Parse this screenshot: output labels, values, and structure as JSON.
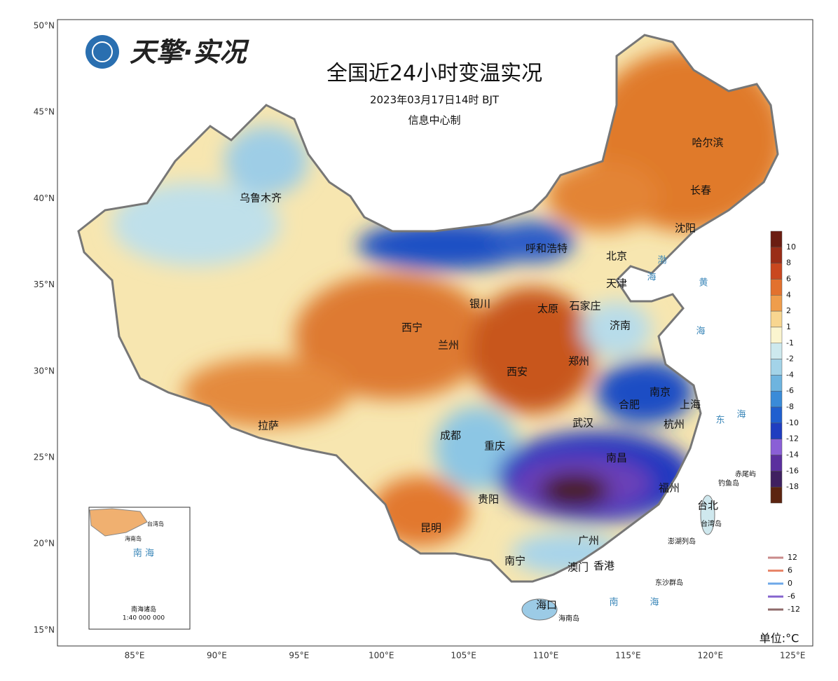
{
  "logo": "天擎·实况",
  "title": "全国近24小时变温实况",
  "time": "2023年03月17日14时  BJT",
  "producer": "信息中心制",
  "lat_labels": [
    "50°N",
    "45°N",
    "40°N",
    "35°N",
    "30°N",
    "25°N",
    "20°N",
    "15°N"
  ],
  "lon_labels": [
    "85°E",
    "90°E",
    "95°E",
    "100°E",
    "105°E",
    "110°E",
    "115°E",
    "120°E",
    "125°E"
  ],
  "cities": [
    "乌鲁木齐",
    "哈尔滨",
    "长春",
    "沈阳",
    "呼和浩特",
    "北京",
    "天津",
    "银川",
    "太原",
    "石家庄",
    "西宁",
    "兰州",
    "济南",
    "郑州",
    "西安",
    "南京",
    "合肥",
    "上海",
    "武汉",
    "杭州",
    "成都",
    "重庆",
    "拉萨",
    "南昌",
    "福州",
    "贵阳",
    "台北",
    "昆明",
    "广州",
    "南宁",
    "澳门",
    "香港",
    "海口"
  ],
  "seas": [
    "渤",
    "海",
    "黄",
    "海",
    "东",
    "海",
    "南",
    "海"
  ],
  "islands": [
    "赤尾屿",
    "钓鱼岛",
    "台湾岛",
    "澎湖列岛",
    "东沙群岛",
    "海南岛"
  ],
  "inset": {
    "sea": "南 海",
    "islands": "南海诸岛",
    "scale": "1:40 000 000",
    "labels": [
      "台湾岛",
      "海南岛"
    ]
  },
  "colorbar": {
    "labels": [
      10,
      8,
      6,
      4,
      2,
      1,
      -1,
      -2,
      -4,
      -6,
      -8,
      -10,
      -12,
      -14,
      -16,
      -18
    ],
    "colors": [
      "#6b1d12",
      "#9a2d18",
      "#c9471f",
      "#e2712e",
      "#ef9d4c",
      "#f8d690",
      "#fbf5cf",
      "#cde9ee",
      "#a3d3e8",
      "#6eb4df",
      "#3a8bd8",
      "#1f5fcf",
      "#1f3dc0",
      "#8a5fd6",
      "#5b2f9e",
      "#3f2060",
      "#5c2410"
    ]
  },
  "contour_legend": {
    "labels": [
      12,
      6,
      0,
      -6,
      -12
    ],
    "colors": [
      "#c98a8a",
      "#e8866a",
      "#6ea8e8",
      "#8a6ad0",
      "#8e6a6a"
    ]
  },
  "unit": "单位:°C"
}
